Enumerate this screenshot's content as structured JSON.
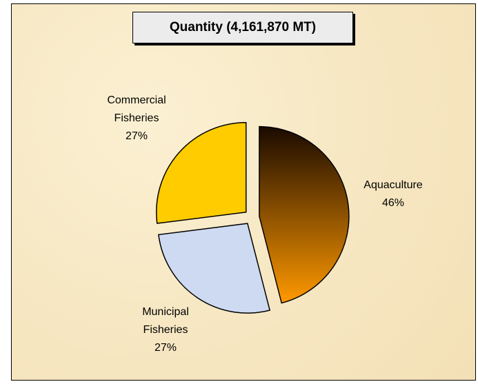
{
  "chart_data": {
    "type": "pie",
    "title": "Quantity (4,161,870 MT)",
    "categories": [
      "Aquaculture",
      "Municipal Fisheries",
      "Commercial Fisheries"
    ],
    "values": [
      46,
      27,
      27
    ],
    "value_labels": [
      "46%",
      "27%",
      "27%"
    ],
    "colors": [
      "#ff9900",
      "#cddaf2",
      "#ffcc00"
    ]
  }
}
